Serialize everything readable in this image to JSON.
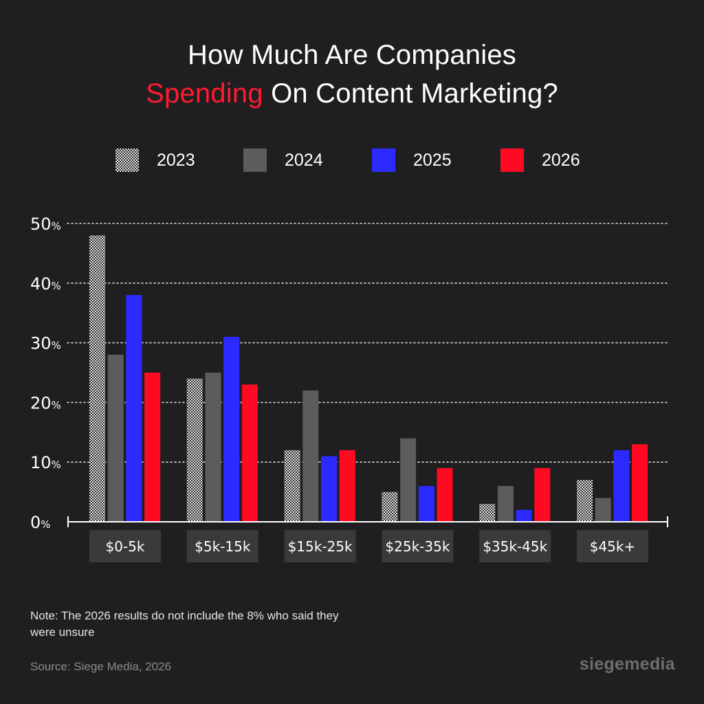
{
  "title": {
    "line1": "How Much Are Companies",
    "accent": "Spending",
    "line2_rest": " On Content Marketing?"
  },
  "colors": {
    "background": "#1f1f21",
    "accent": "#ff1a2e",
    "series_2023": "#d0d0d0",
    "series_2024": "#5c5c5e",
    "series_2025": "#2b2bff",
    "series_2026": "#ff0a22",
    "category_box": "#3a3a3c",
    "grid": "#d9d9d9"
  },
  "chart_data": {
    "type": "bar",
    "categories": [
      "$0-5k",
      "$5k-15k",
      "$15k-25k",
      "$25k-35k",
      "$35k-45k",
      "$45k+"
    ],
    "series": [
      {
        "name": "2023",
        "values": [
          48,
          24,
          12,
          5,
          3,
          7
        ]
      },
      {
        "name": "2024",
        "values": [
          28,
          25,
          22,
          14,
          6,
          4
        ]
      },
      {
        "name": "2025",
        "values": [
          38,
          31,
          11,
          6,
          2,
          12
        ]
      },
      {
        "name": "2026",
        "values": [
          25,
          23,
          12,
          9,
          9,
          13
        ]
      }
    ],
    "y_ticks": [
      "0",
      "10",
      "20",
      "30",
      "40",
      "50"
    ],
    "y_unit": "%",
    "ylim": [
      0,
      50
    ],
    "grid": true,
    "legend_position": "top",
    "title": "How Much Are Companies Spending On Content Marketing?"
  },
  "note": "Note: The 2026 results do not include the 8% who said they were unsure",
  "source": "Source: Siege Media, 2026",
  "brand": "siegemedia"
}
